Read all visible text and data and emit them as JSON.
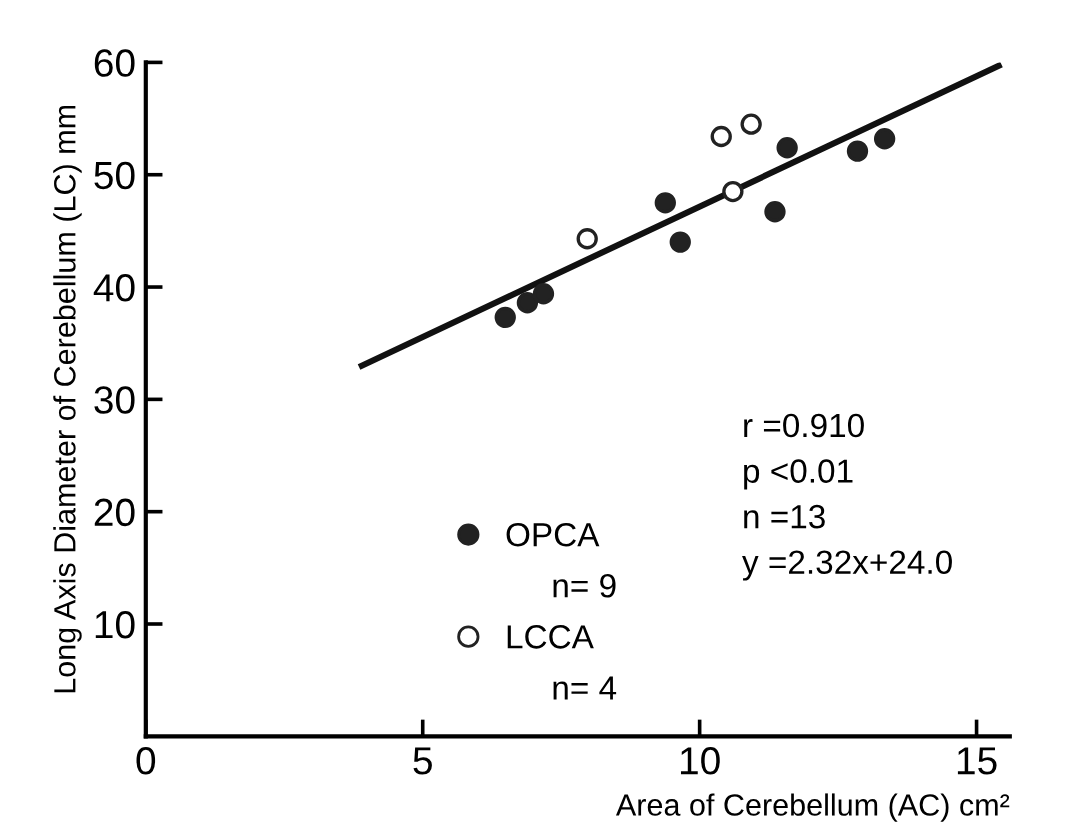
{
  "chart_data": {
    "type": "scatter",
    "xlabel": "Area of Cerebellum (AC) cm²",
    "ylabel": "Long Axis Diameter of Cerebellum (LC) mm",
    "xlim": [
      0,
      15.6
    ],
    "ylim": [
      0,
      60
    ],
    "xticks": [
      0,
      5,
      10,
      15
    ],
    "yticks": [
      10,
      20,
      30,
      40,
      50,
      60
    ],
    "grid": false,
    "legend": "bottom left",
    "series": [
      {
        "name": "OPCA",
        "color": "#222222",
        "marker": "circle",
        "x": [
          6.49,
          6.89,
          7.18,
          9.38,
          9.65,
          11.36,
          11.58,
          12.85,
          13.34
        ],
        "values": [
          37.3,
          38.6,
          39.4,
          47.5,
          44.0,
          46.7,
          52.4,
          52.1,
          53.2
        ]
      },
      {
        "name": "LCCA",
        "color": "#ffffff",
        "marker": "circle",
        "x": [
          7.97,
          10.39,
          10.93,
          10.6
        ],
        "values": [
          44.3,
          53.4,
          54.5,
          48.5
        ]
      },
      {
        "type": "line",
        "color": "#111111",
        "marker": "none",
        "x": [
          3.9,
          15.4
        ],
        "values": [
          33.0,
          59.7
        ]
      }
    ],
    "annotations": [
      "r =0.910",
      "p <0.01",
      "n =13",
      "y =2.32x+24.0",
      "n= 9",
      "n= 4"
    ]
  }
}
